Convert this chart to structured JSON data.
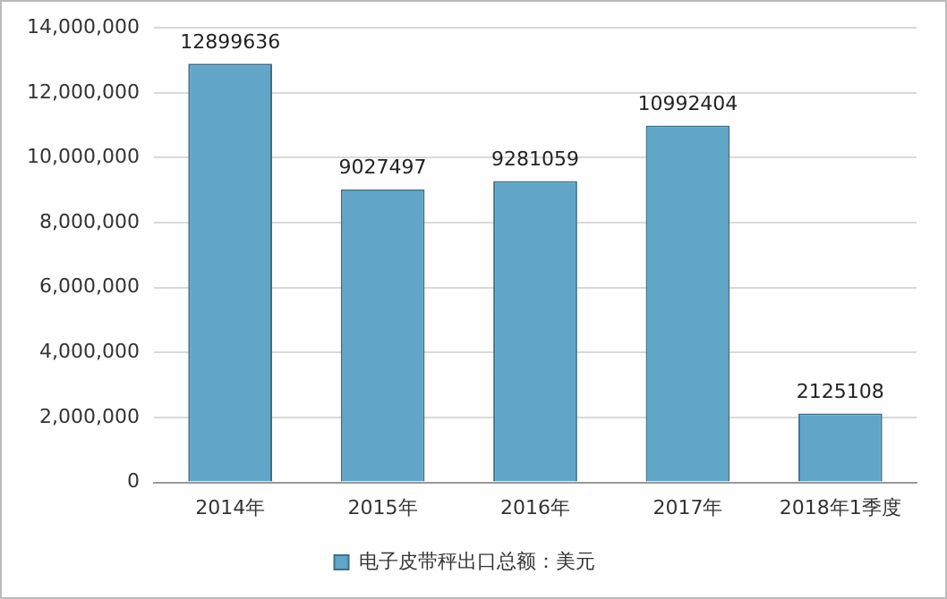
{
  "chart_data": {
    "type": "bar",
    "categories": [
      "2014年",
      "2015年",
      "2016年",
      "2017年",
      "2018年1季度"
    ],
    "series": [
      {
        "name": "电子皮带秤出口总额：美元",
        "color": "#5fa6c8",
        "values": [
          12899636,
          9027497,
          9281059,
          10992404,
          2125108
        ]
      }
    ],
    "ylim": [
      0,
      14000000
    ],
    "yticks": [
      {
        "value": 0,
        "label": "0"
      },
      {
        "value": 2000000,
        "label": "2,000,000"
      },
      {
        "value": 4000000,
        "label": "4,000,000"
      },
      {
        "value": 6000000,
        "label": "6,000,000"
      },
      {
        "value": 8000000,
        "label": "8,000,000"
      },
      {
        "value": 10000000,
        "label": "10,000,000"
      },
      {
        "value": 12000000,
        "label": "12,000,000"
      },
      {
        "value": 14000000,
        "label": "14,000,000"
      }
    ],
    "grid": "y",
    "legend": "bottom",
    "data_labels": true
  }
}
